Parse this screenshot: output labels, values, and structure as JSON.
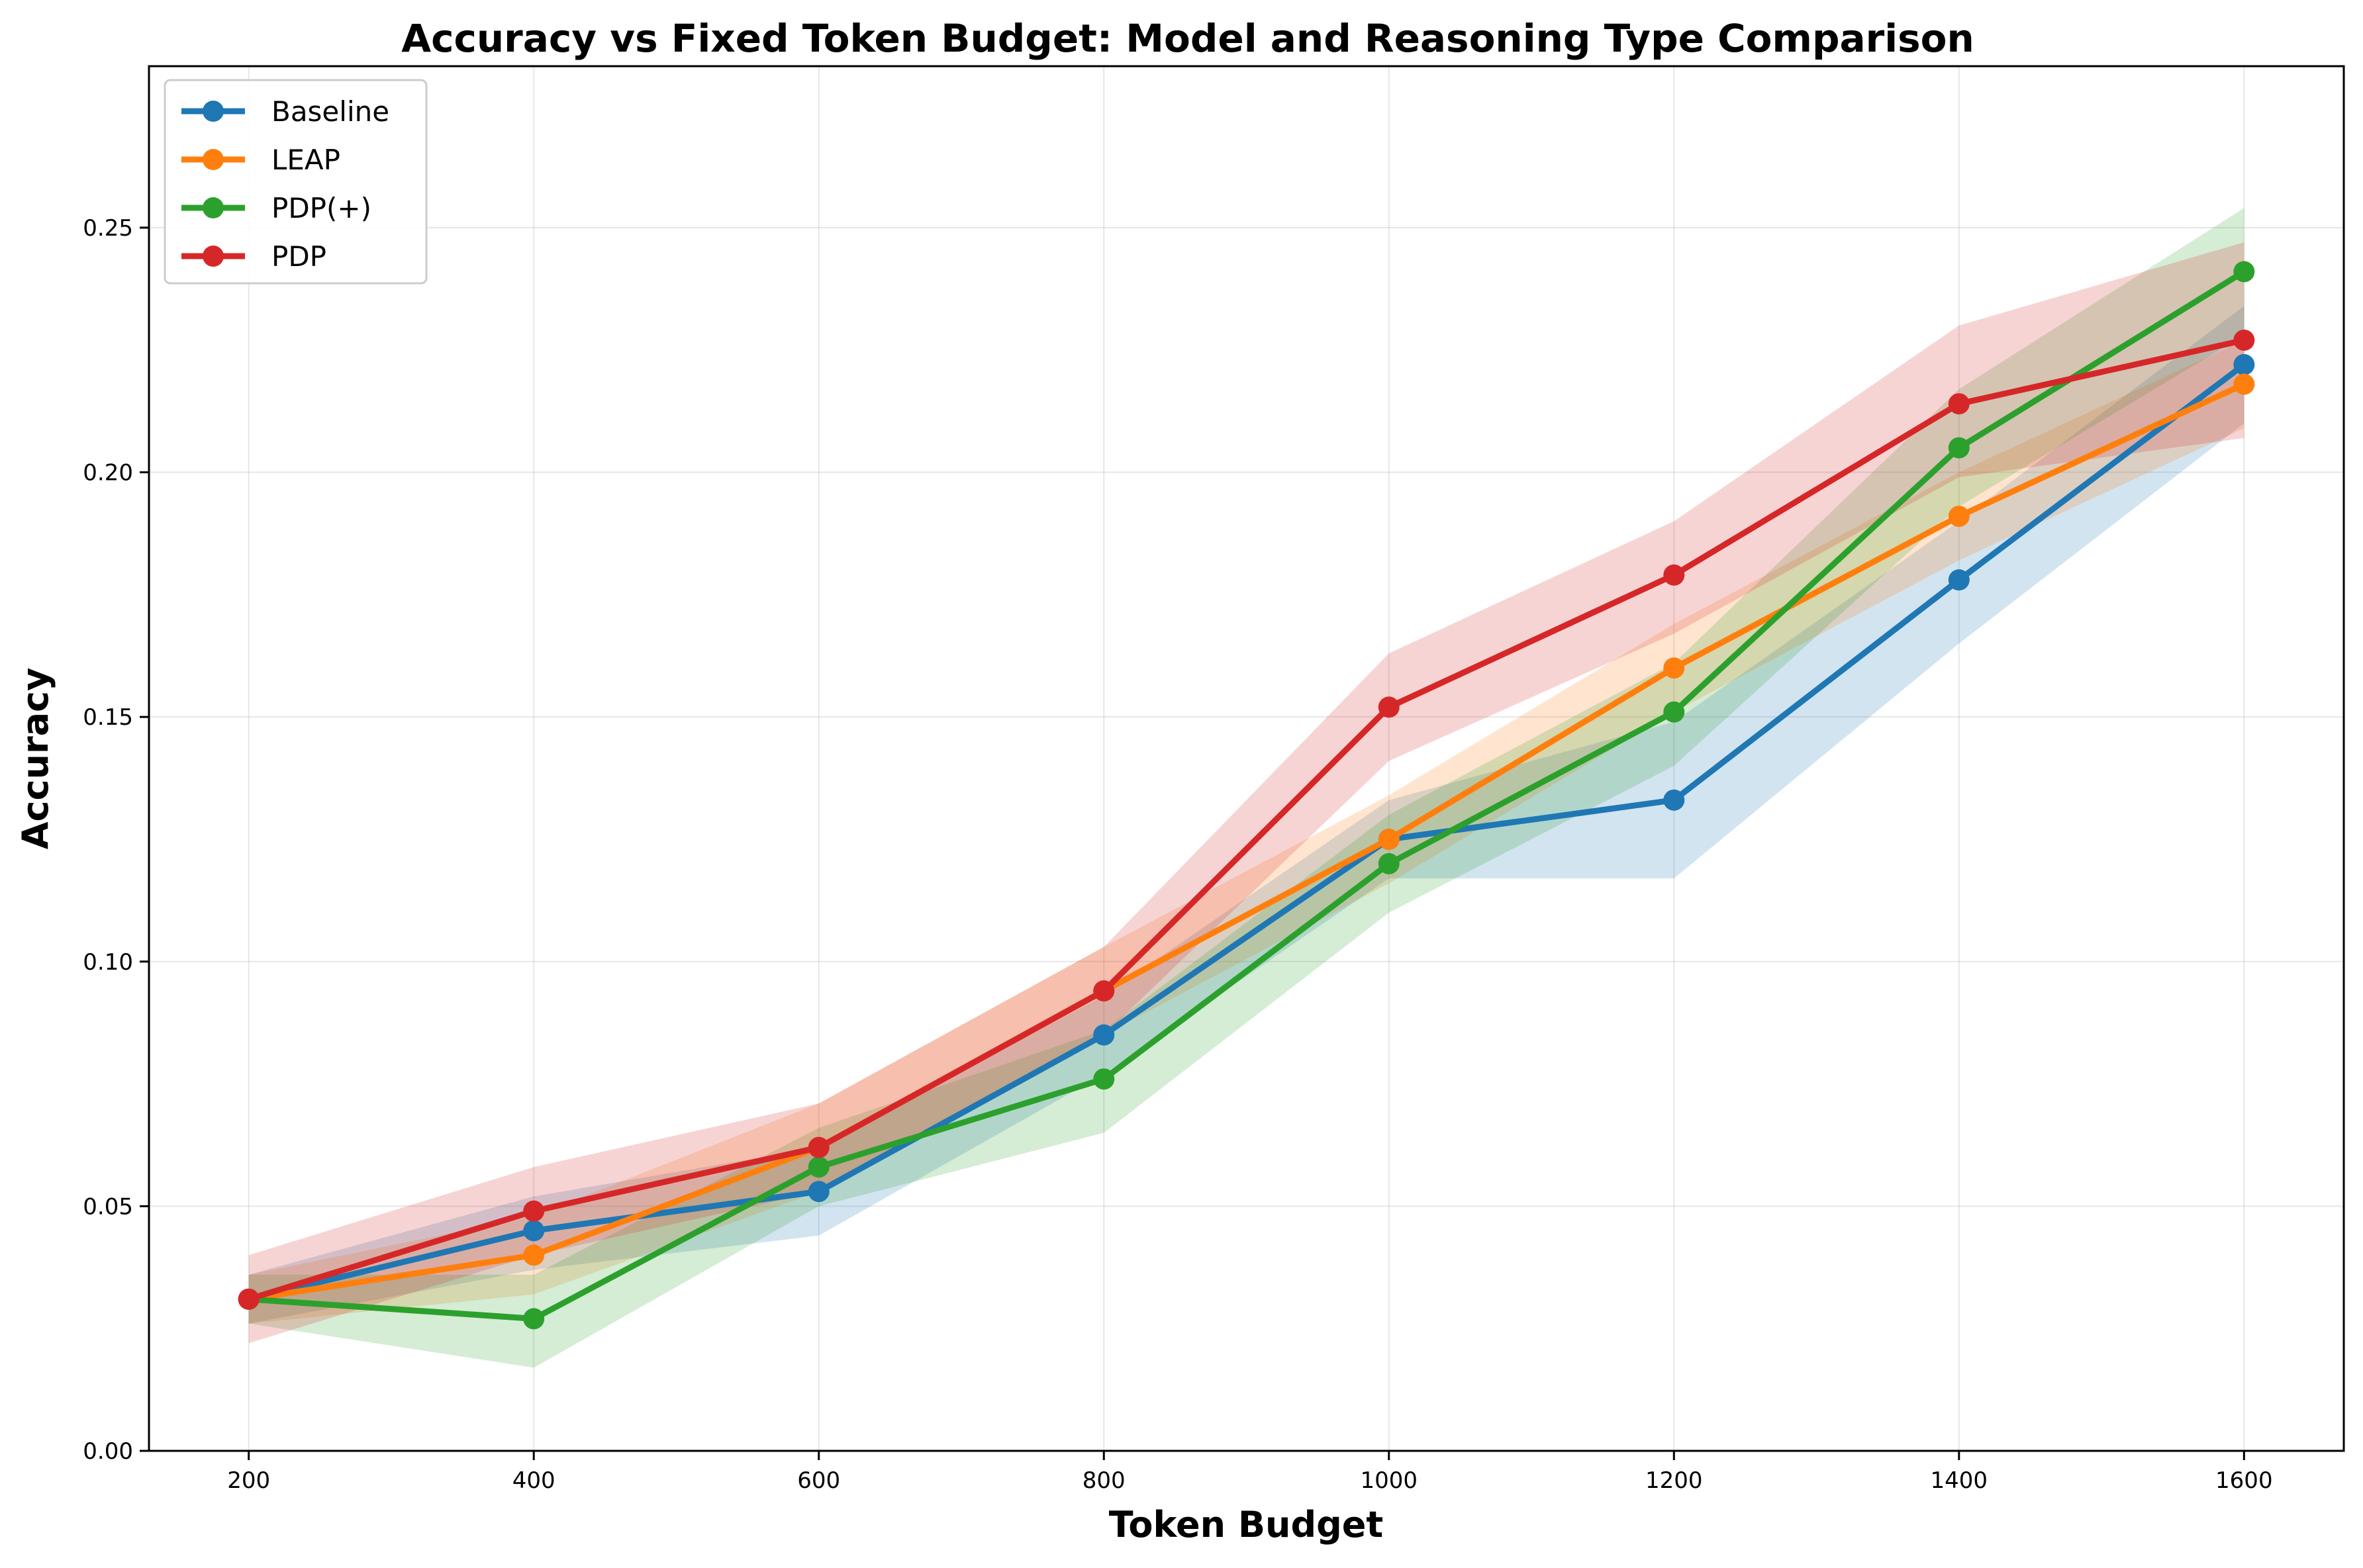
{
  "chart_data": {
    "type": "line",
    "title": "Accuracy vs Fixed Token Budget: Model and Reasoning Type Comparison",
    "xlabel": "Token Budget",
    "ylabel": "Accuracy",
    "x": [
      200,
      400,
      600,
      800,
      1000,
      1200,
      1400,
      1600
    ],
    "xticks": [
      200,
      400,
      600,
      800,
      1000,
      1200,
      1400,
      1600
    ],
    "xtick_labels": [
      "200",
      "400",
      "600",
      "800",
      "1000",
      "1200",
      "1400",
      "1600"
    ],
    "yticks": [
      0.0,
      0.05,
      0.1,
      0.15,
      0.2,
      0.25
    ],
    "ytick_labels": [
      "0.00",
      "0.05",
      "0.10",
      "0.15",
      "0.20",
      "0.25"
    ],
    "xlim": [
      130,
      1670
    ],
    "ylim": [
      0.0,
      0.283
    ],
    "grid": true,
    "legend_position": "top-left",
    "series": [
      {
        "name": "Baseline",
        "color": "#1f77b4",
        "values": [
          0.031,
          0.045,
          0.053,
          0.085,
          0.125,
          0.133,
          0.178,
          0.222
        ],
        "lower": [
          0.026,
          0.037,
          0.044,
          0.077,
          0.117,
          0.117,
          0.165,
          0.21
        ],
        "upper": [
          0.036,
          0.052,
          0.062,
          0.093,
          0.133,
          0.149,
          0.19,
          0.234
        ]
      },
      {
        "name": "LEAP",
        "color": "#ff7f0e",
        "values": [
          0.031,
          0.04,
          0.062,
          0.094,
          0.125,
          0.16,
          0.191,
          0.218
        ],
        "lower": [
          0.026,
          0.032,
          0.053,
          0.085,
          0.116,
          0.151,
          0.182,
          0.209
        ],
        "upper": [
          0.036,
          0.048,
          0.071,
          0.103,
          0.134,
          0.169,
          0.2,
          0.227
        ]
      },
      {
        "name": "PDP(+)",
        "color": "#2ca02c",
        "values": [
          0.031,
          0.027,
          0.058,
          0.076,
          0.12,
          0.151,
          0.205,
          0.241
        ],
        "lower": [
          0.026,
          0.017,
          0.05,
          0.065,
          0.11,
          0.14,
          0.193,
          0.228
        ],
        "upper": [
          0.036,
          0.036,
          0.066,
          0.086,
          0.13,
          0.161,
          0.217,
          0.254
        ]
      },
      {
        "name": "PDP",
        "color": "#d62728",
        "values": [
          0.031,
          0.049,
          0.062,
          0.094,
          0.152,
          0.179,
          0.214,
          0.227
        ],
        "lower": [
          0.022,
          0.04,
          0.053,
          0.085,
          0.141,
          0.167,
          0.199,
          0.207
        ],
        "upper": [
          0.04,
          0.058,
          0.071,
          0.103,
          0.163,
          0.19,
          0.23,
          0.247
        ]
      }
    ]
  }
}
